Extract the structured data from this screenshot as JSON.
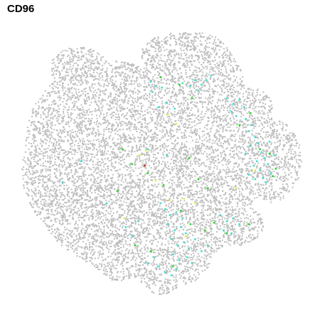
{
  "chart_data": {
    "type": "scatter",
    "title": "CD96",
    "xlabel": "",
    "ylabel": "",
    "axes_visible": false,
    "grid": false,
    "legend": "none",
    "xlim": [
      -45,
      45
    ],
    "ylim": [
      -45,
      45
    ],
    "colors": {
      "background_cell": "#bebebe",
      "low": "#40e0d0",
      "mid": "#22dd22",
      "high": "#eeee44",
      "max": "#dd2222"
    },
    "groups": [
      {
        "name": "",
        "color": "#40e0d0",
        "points": [
          [
            -4.0,
            28.5
          ],
          [
            -2.5,
            27.0
          ],
          [
            -3.5,
            25.0
          ],
          [
            -0.5,
            26.5
          ],
          [
            6.0,
            28.0
          ],
          [
            8.5,
            27.0
          ],
          [
            10.0,
            29.0
          ],
          [
            12.0,
            27.5
          ],
          [
            13.5,
            29.0
          ],
          [
            15.0,
            30.5
          ],
          [
            11.0,
            25.5
          ],
          [
            -1.5,
            20.0
          ],
          [
            1.0,
            21.5
          ],
          [
            3.5,
            19.5
          ],
          [
            20.0,
            23.0
          ],
          [
            22.0,
            21.0
          ],
          [
            24.0,
            22.5
          ],
          [
            21.5,
            18.5
          ],
          [
            25.5,
            20.0
          ],
          [
            23.0,
            17.0
          ],
          [
            26.0,
            16.0
          ],
          [
            28.0,
            14.0
          ],
          [
            27.0,
            12.0
          ],
          [
            29.0,
            10.0
          ],
          [
            30.0,
            8.0
          ],
          [
            27.5,
            7.0
          ],
          [
            31.0,
            5.0
          ],
          [
            32.0,
            3.0
          ],
          [
            29.5,
            2.0
          ],
          [
            33.0,
            1.0
          ],
          [
            30.5,
            -1.0
          ],
          [
            28.5,
            0.5
          ],
          [
            34.0,
            -2.0
          ],
          [
            31.5,
            -3.5
          ],
          [
            29.0,
            -4.0
          ],
          [
            32.5,
            -5.0
          ],
          [
            27.0,
            -2.5
          ],
          [
            35.0,
            4.0
          ],
          [
            33.5,
            8.5
          ],
          [
            26.0,
            4.5
          ],
          [
            -1.0,
            -12.0
          ],
          [
            0.5,
            -14.0
          ],
          [
            2.0,
            -16.0
          ],
          [
            4.0,
            -15.0
          ],
          [
            6.0,
            -17.0
          ],
          [
            1.5,
            -19.0
          ],
          [
            3.5,
            -21.0
          ],
          [
            5.5,
            -20.0
          ],
          [
            7.0,
            -22.0
          ],
          [
            2.5,
            -24.0
          ],
          [
            4.5,
            -26.0
          ],
          [
            6.5,
            -25.0
          ],
          [
            8.0,
            -27.0
          ],
          [
            3.0,
            -29.0
          ],
          [
            5.0,
            -31.0
          ],
          [
            7.5,
            -30.0
          ],
          [
            9.0,
            -32.0
          ],
          [
            -1.5,
            -33.0
          ],
          [
            0.5,
            -35.0
          ],
          [
            2.5,
            -36.0
          ],
          [
            4.0,
            -34.0
          ],
          [
            -3.0,
            -30.0
          ],
          [
            -5.0,
            -32.0
          ],
          [
            10.0,
            -24.0
          ],
          [
            12.0,
            -28.0
          ],
          [
            14.0,
            -26.0
          ],
          [
            18.0,
            -16.0
          ],
          [
            20.0,
            -18.0
          ],
          [
            22.0,
            -17.0
          ],
          [
            24.0,
            -19.0
          ],
          [
            19.0,
            -21.0
          ],
          [
            21.5,
            -22.0
          ],
          [
            -8.0,
            -18.0
          ],
          [
            -10.0,
            -23.0
          ],
          [
            -12.0,
            -20.0
          ],
          [
            -32.0,
            -5.0
          ],
          [
            -26.0,
            2.0
          ],
          [
            -18.0,
            -12.0
          ],
          [
            -5.0,
            6.0
          ],
          [
            1.0,
            4.0
          ]
        ]
      },
      {
        "name": "",
        "color": "#22dd22",
        "points": [
          [
            -1.0,
            30.0
          ],
          [
            5.0,
            27.5
          ],
          [
            9.0,
            23.0
          ],
          [
            -13.0,
            6.0
          ],
          [
            -10.0,
            1.0
          ],
          [
            -5.0,
            -2.0
          ],
          [
            8.0,
            3.0
          ],
          [
            11.0,
            -4.0
          ],
          [
            14.0,
            -7.0
          ],
          [
            5.5,
            -14.5
          ],
          [
            8.5,
            -19.0
          ],
          [
            13.0,
            -21.0
          ],
          [
            16.0,
            -18.5
          ],
          [
            27.0,
            -19.0
          ],
          [
            20.0,
            -22.0
          ],
          [
            30.5,
            6.0
          ],
          [
            33.5,
            4.5
          ],
          [
            35.5,
            -0.5
          ],
          [
            34.5,
            -3.0
          ],
          [
            24.0,
            14.0
          ],
          [
            27.5,
            18.0
          ],
          [
            -9.0,
            -26.0
          ],
          [
            -4.0,
            -28.0
          ],
          [
            3.0,
            -33.0
          ],
          [
            -14.5,
            -8.0
          ],
          [
            0.0,
            -6.0
          ]
        ]
      },
      {
        "name": "",
        "color": "#eeee44",
        "points": [
          [
            -7.5,
            4.0
          ],
          [
            -5.5,
            5.5
          ],
          [
            -2.5,
            -4.5
          ],
          [
            2.0,
            -11.0
          ],
          [
            6.5,
            -10.5
          ],
          [
            10.0,
            -12.0
          ],
          [
            23.0,
            -7.0
          ],
          [
            29.0,
            -1.0
          ],
          [
            -12.5,
            -17.0
          ],
          [
            7.0,
            -23.0
          ],
          [
            4.0,
            14.5
          ],
          [
            1.5,
            17.5
          ]
        ]
      },
      {
        "name": "",
        "color": "#dd2222",
        "points": [
          [
            -6.0,
            0.5
          ]
        ]
      }
    ]
  }
}
